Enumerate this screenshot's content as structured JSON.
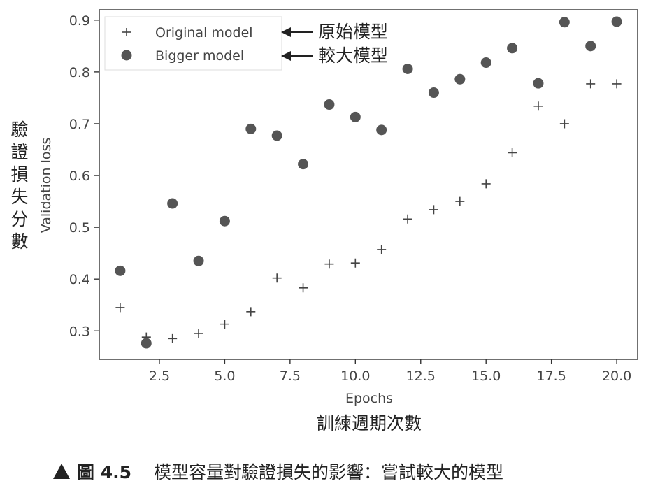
{
  "chart_data": {
    "type": "scatter",
    "xlabel": "Epochs",
    "ylabel": "Validation loss",
    "xlabel_cn": "訓練週期次數",
    "ylabel_cn": "驗證損失分數",
    "xlim": [
      0.2,
      20.8
    ],
    "ylim": [
      0.245,
      0.92
    ],
    "xticks": [
      2.5,
      5.0,
      7.5,
      10.0,
      12.5,
      15.0,
      17.5,
      20.0
    ],
    "xtick_labels": [
      "2.5",
      "5.0",
      "7.5",
      "10.0",
      "12.5",
      "15.0",
      "17.5",
      "20.0"
    ],
    "yticks": [
      0.3,
      0.4,
      0.5,
      0.6,
      0.7,
      0.8,
      0.9
    ],
    "ytick_labels": [
      "0.3",
      "0.4",
      "0.5",
      "0.6",
      "0.7",
      "0.8",
      "0.9"
    ],
    "grid": false,
    "legend_position": "top-left",
    "x": [
      1,
      2,
      3,
      4,
      5,
      6,
      7,
      8,
      9,
      10,
      11,
      12,
      13,
      14,
      15,
      16,
      17,
      18,
      19,
      20
    ],
    "series": [
      {
        "name": "Original model",
        "name_cn": "原始模型",
        "marker": "plus",
        "color": "#444444",
        "values": [
          0.345,
          0.288,
          0.285,
          0.295,
          0.313,
          0.337,
          0.402,
          0.383,
          0.429,
          0.431,
          0.457,
          0.516,
          0.534,
          0.55,
          0.584,
          0.644,
          0.734,
          0.7,
          0.777,
          0.777
        ]
      },
      {
        "name": "Bigger model",
        "name_cn": "較大模型",
        "marker": "circle",
        "color": "#555555",
        "values": [
          0.416,
          0.276,
          0.546,
          0.435,
          0.512,
          0.69,
          0.677,
          0.622,
          0.737,
          0.713,
          0.688,
          0.806,
          0.76,
          0.786,
          0.818,
          0.846,
          0.778,
          0.896,
          0.85,
          0.897
        ]
      }
    ]
  },
  "caption": {
    "figure_number": "圖 4.5",
    "text": "模型容量對驗證損失的影響：嘗試較大的模型"
  }
}
